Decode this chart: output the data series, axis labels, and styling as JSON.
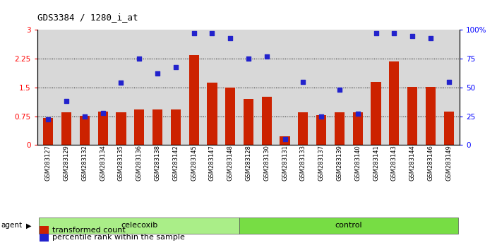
{
  "title": "GDS3384 / 1280_i_at",
  "samples": [
    "GSM283127",
    "GSM283129",
    "GSM283132",
    "GSM283134",
    "GSM283135",
    "GSM283136",
    "GSM283138",
    "GSM283142",
    "GSM283145",
    "GSM283147",
    "GSM283148",
    "GSM283128",
    "GSM283130",
    "GSM283131",
    "GSM283133",
    "GSM283137",
    "GSM283139",
    "GSM283140",
    "GSM283141",
    "GSM283143",
    "GSM283144",
    "GSM283146",
    "GSM283149"
  ],
  "transformed_count": [
    0.7,
    0.85,
    0.77,
    0.88,
    0.85,
    0.92,
    0.92,
    0.92,
    2.35,
    1.62,
    1.5,
    1.2,
    1.25,
    0.22,
    0.85,
    0.78,
    0.85,
    0.85,
    1.65,
    2.18,
    1.52,
    1.52,
    0.88
  ],
  "percentile_rank": [
    22,
    38,
    25,
    28,
    54,
    75,
    62,
    68,
    97,
    97,
    93,
    75,
    77,
    5,
    55,
    25,
    48,
    27,
    97,
    97,
    95,
    93,
    55
  ],
  "celecoxib_count": 11,
  "control_count": 12,
  "bar_color": "#cc2200",
  "dot_color": "#2222cc",
  "celecoxib_color": "#aaee88",
  "control_color": "#77dd44",
  "ylim_left": [
    0,
    3
  ],
  "ylim_right": [
    0,
    100
  ],
  "yticks_left": [
    0,
    0.75,
    1.5,
    2.25,
    3
  ],
  "ytick_labels_left": [
    "0",
    "0.75",
    "1.5",
    "2.25",
    "3"
  ],
  "yticks_right": [
    0,
    25,
    50,
    75,
    100
  ],
  "ytick_labels_right": [
    "0",
    "25",
    "50",
    "75",
    "100%"
  ],
  "hlines": [
    0.75,
    1.5,
    2.25
  ],
  "bg_color": "#d8d8d8",
  "legend_items": [
    "transformed count",
    "percentile rank within the sample"
  ],
  "agent_label": "agent"
}
